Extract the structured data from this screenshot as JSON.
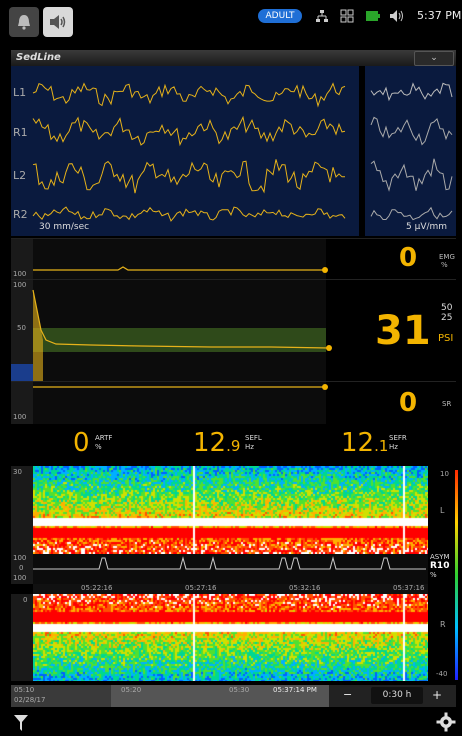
{
  "status_bar": {
    "patient_type": "ADULT",
    "time": "5:37 PM",
    "icons": [
      "bell-icon",
      "speaker-icon",
      "network-icon",
      "grid-icon",
      "battery-icon",
      "volume-icon"
    ]
  },
  "header": {
    "title": "SedLine",
    "dropdown_glyph": "⌄"
  },
  "eeg": {
    "channels": [
      "L1",
      "R1",
      "L2",
      "R2"
    ],
    "speed": "30 mm/sec",
    "scale": "5 µV/mm"
  },
  "emg": {
    "value": "0",
    "label": "EMG",
    "unit": "%",
    "axis": [
      "",
      "100"
    ]
  },
  "psi": {
    "value": "31",
    "label": "PSI",
    "upper": "50",
    "lower": "25",
    "axis_top": "100",
    "axis_mid": "50"
  },
  "sr": {
    "value": "0",
    "label": "SR",
    "axis": "100"
  },
  "artf": {
    "value": "0",
    "label": "ARTF",
    "unit": "%"
  },
  "sefl": {
    "value": "12",
    "decimal": ".9",
    "label": "SEFL",
    "unit": "Hz"
  },
  "sefr": {
    "value": "12",
    "decimal": ".1",
    "label": "SEFR",
    "unit": "Hz"
  },
  "spectrogram_left": {
    "axis_top": "30",
    "axis_bottom": "",
    "side": "L",
    "color_top": "10"
  },
  "asym": {
    "label": "ASYM",
    "channel": "R10",
    "unit": "%",
    "axis": [
      "100",
      "0",
      "100"
    ]
  },
  "spectrogram_times": [
    "05:22:16",
    "05:27:16",
    "05:32:16",
    "05:37:16"
  ],
  "spectrogram_right": {
    "axis_top": "0",
    "side": "R",
    "color_bottom": "-40"
  },
  "timeline": {
    "start": "05:10",
    "date": "02/28/17",
    "marks": [
      "05:20",
      "05:30"
    ],
    "cursor": "05:37:14 PM",
    "minus": "−",
    "window": "0:30 h",
    "plus": "+"
  }
}
